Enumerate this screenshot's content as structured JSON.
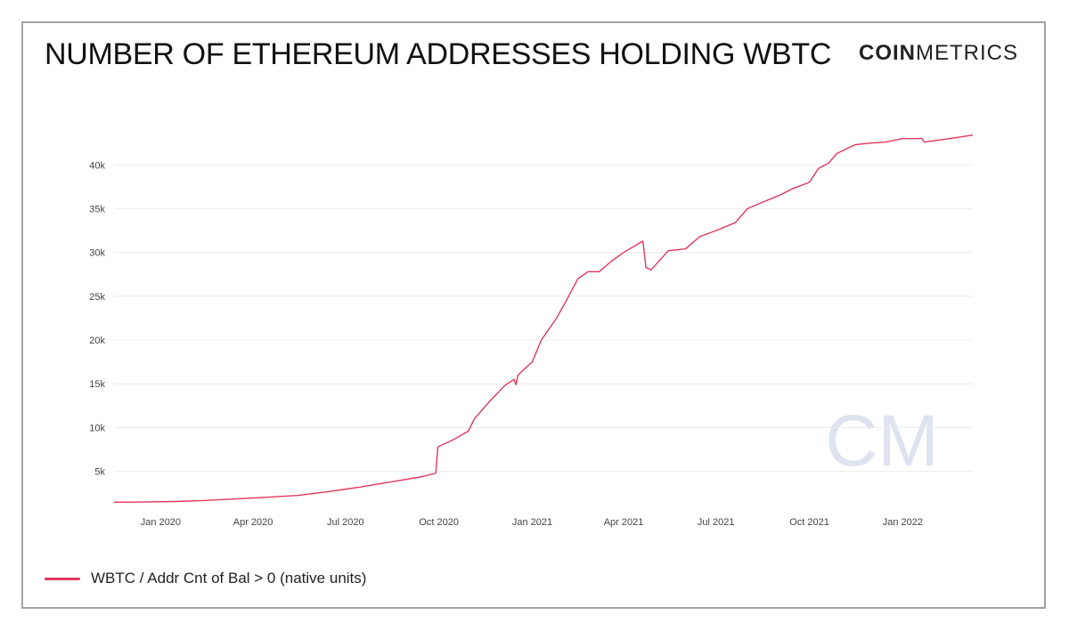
{
  "header": {
    "title": "NUMBER OF ETHEREUM ADDRESSES HOLDING WBTC",
    "brand_bold": "COIN",
    "brand_light": "METRICS",
    "watermark": "CM"
  },
  "colors": {
    "series": "#e0385e",
    "grid": "#ececec",
    "axis_text": "#444444",
    "watermark": "#dfe3ef"
  },
  "chart_data": {
    "type": "line",
    "title": "NUMBER OF ETHEREUM ADDRESSES HOLDING WBTC",
    "xlabel": "",
    "ylabel": "",
    "xlim": [
      "2019-11-16",
      "2022-03-11"
    ],
    "ylim": [
      1100,
      44600
    ],
    "grid": true,
    "legend_position": "bottom-left",
    "x_ticks": [
      {
        "date": "2020-01-01",
        "label": "Jan 2020"
      },
      {
        "date": "2020-04-01",
        "label": "Apr 2020"
      },
      {
        "date": "2020-07-01",
        "label": "Jul 2020"
      },
      {
        "date": "2020-10-01",
        "label": "Oct 2020"
      },
      {
        "date": "2021-01-01",
        "label": "Jan 2021"
      },
      {
        "date": "2021-04-01",
        "label": "Apr 2021"
      },
      {
        "date": "2021-07-01",
        "label": "Jul 2021"
      },
      {
        "date": "2021-10-01",
        "label": "Oct 2021"
      },
      {
        "date": "2022-01-01",
        "label": "Jan 2022"
      }
    ],
    "y_ticks": [
      {
        "value": 5000,
        "label": "5k"
      },
      {
        "value": 10000,
        "label": "10k"
      },
      {
        "value": 15000,
        "label": "15k"
      },
      {
        "value": 20000,
        "label": "20k"
      },
      {
        "value": 25000,
        "label": "25k"
      },
      {
        "value": 30000,
        "label": "30k"
      },
      {
        "value": 35000,
        "label": "35k"
      },
      {
        "value": 40000,
        "label": "40k"
      }
    ],
    "series": [
      {
        "name": "WBTC / Addr Cnt of Bal > 0 (native units)",
        "points": [
          [
            "2019-11-16",
            1480
          ],
          [
            "2019-12-15",
            1500
          ],
          [
            "2020-01-15",
            1560
          ],
          [
            "2020-02-15",
            1680
          ],
          [
            "2020-03-15",
            1850
          ],
          [
            "2020-04-15",
            2050
          ],
          [
            "2020-05-15",
            2250
          ],
          [
            "2020-06-15",
            2700
          ],
          [
            "2020-07-15",
            3200
          ],
          [
            "2020-08-15",
            3800
          ],
          [
            "2020-09-15",
            4400
          ],
          [
            "2020-09-28",
            4800
          ],
          [
            "2020-09-30",
            7800
          ],
          [
            "2020-10-15",
            8600
          ],
          [
            "2020-10-30",
            9600
          ],
          [
            "2020-11-05",
            11000
          ],
          [
            "2020-11-20",
            13000
          ],
          [
            "2020-12-05",
            14800
          ],
          [
            "2020-12-14",
            15500
          ],
          [
            "2020-12-16",
            14900
          ],
          [
            "2020-12-18",
            16000
          ],
          [
            "2021-01-01",
            17500
          ],
          [
            "2021-01-10",
            20000
          ],
          [
            "2021-01-25",
            22500
          ],
          [
            "2021-02-05",
            24800
          ],
          [
            "2021-02-15",
            27000
          ],
          [
            "2021-02-25",
            27800
          ],
          [
            "2021-03-08",
            27800
          ],
          [
            "2021-03-20",
            29000
          ],
          [
            "2021-04-01",
            30000
          ],
          [
            "2021-04-20",
            31300
          ],
          [
            "2021-04-23",
            28300
          ],
          [
            "2021-04-28",
            28000
          ],
          [
            "2021-05-15",
            30200
          ],
          [
            "2021-06-01",
            30400
          ],
          [
            "2021-06-15",
            31800
          ],
          [
            "2021-07-01",
            32500
          ],
          [
            "2021-07-20",
            33400
          ],
          [
            "2021-08-01",
            35000
          ],
          [
            "2021-08-15",
            35700
          ],
          [
            "2021-09-01",
            36500
          ],
          [
            "2021-09-15",
            37300
          ],
          [
            "2021-10-01",
            38000
          ],
          [
            "2021-10-10",
            39600
          ],
          [
            "2021-10-20",
            40200
          ],
          [
            "2021-10-28",
            41300
          ],
          [
            "2021-11-15",
            42300
          ],
          [
            "2021-12-01",
            42500
          ],
          [
            "2021-12-15",
            42600
          ],
          [
            "2022-01-01",
            43000
          ],
          [
            "2022-01-20",
            43000
          ],
          [
            "2022-01-22",
            42600
          ],
          [
            "2022-02-10",
            42900
          ],
          [
            "2022-03-11",
            43400
          ]
        ]
      }
    ]
  }
}
